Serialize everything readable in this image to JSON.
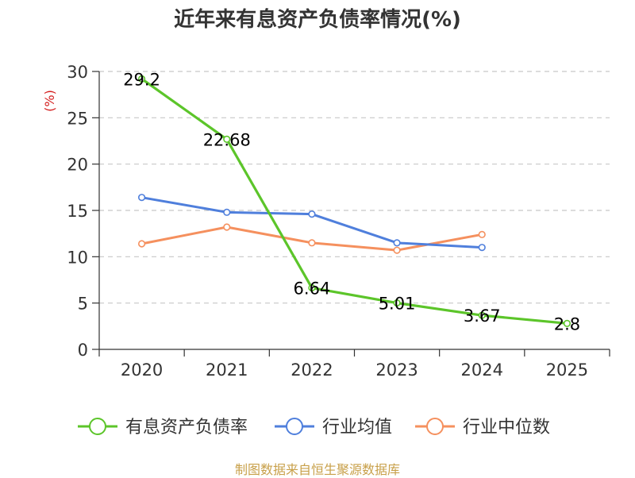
{
  "chart_data": {
    "type": "line",
    "title": "近年来有息资产负债率情况(%)",
    "ylabel": "(%)",
    "xlabel": "",
    "ylim": [
      0,
      30
    ],
    "yticks": [
      0,
      5,
      10,
      15,
      20,
      25,
      30
    ],
    "categories": [
      "2020",
      "2021",
      "2022",
      "2023",
      "2024",
      "2025"
    ],
    "grid": true,
    "legend_position": "bottom",
    "series": [
      {
        "name": "有息资产负债率",
        "color": "#5cc52a",
        "show_labels": true,
        "values": [
          29.2,
          22.68,
          6.64,
          5.01,
          3.67,
          2.8
        ],
        "labels": [
          "29.2",
          "22.68",
          "6.64",
          "5.01",
          "3.67",
          "2.8"
        ]
      },
      {
        "name": "行业均值",
        "color": "#4f7fdc",
        "show_labels": false,
        "values": [
          16.4,
          14.8,
          14.6,
          11.5,
          11.0,
          null
        ]
      },
      {
        "name": "行业中位数",
        "color": "#f5905e",
        "show_labels": false,
        "values": [
          11.4,
          13.2,
          11.5,
          10.7,
          12.4,
          null
        ]
      }
    ]
  },
  "source": "制图数据来自恒生聚源数据库"
}
